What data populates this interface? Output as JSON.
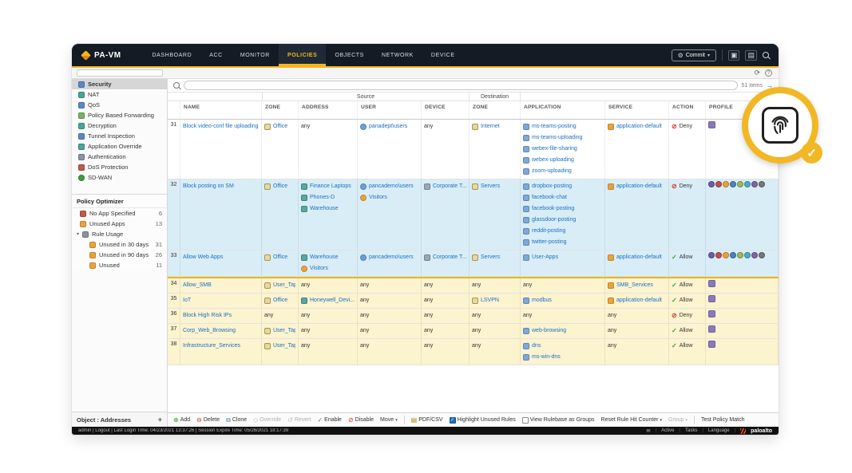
{
  "header": {
    "brand": "PA-VM",
    "nav": [
      "DASHBOARD",
      "ACC",
      "MONITOR",
      "POLICIES",
      "OBJECTS",
      "NETWORK",
      "DEVICE"
    ],
    "active_nav": "POLICIES",
    "commit_label": "Commit"
  },
  "sidebar": {
    "items": [
      {
        "label": "Security",
        "icon": "shield-icon",
        "selected": true
      },
      {
        "label": "NAT",
        "icon": "nat-icon"
      },
      {
        "label": "QoS",
        "icon": "qos-icon"
      },
      {
        "label": "Policy Based Forwarding",
        "icon": "forwarding-icon"
      },
      {
        "label": "Decryption",
        "icon": "decryption-icon"
      },
      {
        "label": "Tunnel Inspection",
        "icon": "tunnel-inspection-icon"
      },
      {
        "label": "Application Override",
        "icon": "app-override-icon"
      },
      {
        "label": "Authentication",
        "icon": "authentication-icon"
      },
      {
        "label": "DoS Protection",
        "icon": "dos-protection-icon"
      },
      {
        "label": "SD-WAN",
        "icon": "sdwan-icon"
      }
    ],
    "optimizer": {
      "title": "Policy Optimizer",
      "items": [
        {
          "label": "No App Specified",
          "count": "6",
          "icon": "no-app-icon"
        },
        {
          "label": "Unused Apps",
          "count": "13",
          "icon": "unused-apps-icon"
        },
        {
          "label": "Rule Usage",
          "count": "",
          "icon": "rule-usage-icon",
          "caret": true
        },
        {
          "label": "Unused in 30 days",
          "count": "31",
          "icon": "unused-rule-icon",
          "indent": true
        },
        {
          "label": "Unused in 90 days",
          "count": "26",
          "icon": "unused-rule-icon",
          "indent": true
        },
        {
          "label": "Unused",
          "count": "11",
          "icon": "unused-rule-icon",
          "indent": true
        }
      ]
    },
    "footer_label": "Object : Addresses"
  },
  "filterbar": {
    "items_count": "51 items"
  },
  "table": {
    "groups": [
      "Source",
      "Destination"
    ],
    "columns": [
      "NAME",
      "ZONE",
      "ADDRESS",
      "USER",
      "DEVICE",
      "ZONE",
      "APPLICATION",
      "SERVICE",
      "ACTION",
      "PROFILE"
    ],
    "rows": [
      {
        "num": "31",
        "name": "Block video-conf file uploading",
        "highlight": "none",
        "zone": [
          {
            "t": "Office",
            "i": "zone-icon"
          }
        ],
        "address": [
          {
            "t": "any"
          }
        ],
        "user": [
          {
            "t": "panadept\\users",
            "i": "user-icon"
          }
        ],
        "device": [
          {
            "t": "any"
          }
        ],
        "dest_zone": [
          {
            "t": "Internet",
            "i": "zone-icon"
          }
        ],
        "applications": [
          {
            "t": "ms-teams-posting",
            "i": "application-icon"
          },
          {
            "t": "ms-teams-uploading",
            "i": "application-icon"
          },
          {
            "t": "webex-file-sharing",
            "i": "application-icon"
          },
          {
            "t": "webex-uploading",
            "i": "application-icon"
          },
          {
            "t": "zoom-uploading",
            "i": "application-icon"
          }
        ],
        "service": [
          {
            "t": "application-default",
            "i": "service-icon"
          }
        ],
        "action": "Deny",
        "profile_icons": 1
      },
      {
        "num": "32",
        "name": "Block posting on SM",
        "highlight": "blue",
        "zone": [
          {
            "t": "Office",
            "i": "zone-icon"
          }
        ],
        "address": [
          {
            "t": "Finance Laptops",
            "i": "address-icon"
          },
          {
            "t": "Phones-D",
            "i": "address-icon"
          },
          {
            "t": "Warehouse",
            "i": "address-icon"
          }
        ],
        "user": [
          {
            "t": "pancademo\\users",
            "i": "user-icon"
          },
          {
            "t": "Visitors",
            "i": "visitors-icon"
          }
        ],
        "device": [
          {
            "t": "Corporate T...",
            "i": "device-icon"
          }
        ],
        "dest_zone": [
          {
            "t": "Servers",
            "i": "zone-icon"
          }
        ],
        "applications": [
          {
            "t": "dropbox-posting",
            "i": "application-icon"
          },
          {
            "t": "facebook-chat",
            "i": "application-icon"
          },
          {
            "t": "facebook-posting",
            "i": "application-icon"
          },
          {
            "t": "glassdoor-posting",
            "i": "application-icon"
          },
          {
            "t": "reddit-posting",
            "i": "application-icon"
          },
          {
            "t": "twitter-posting",
            "i": "application-icon"
          }
        ],
        "service": [
          {
            "t": "application-default",
            "i": "service-icon"
          }
        ],
        "action": "Deny",
        "profile_icons": 8
      },
      {
        "num": "33",
        "name": "Allow Web Apps",
        "highlight": "blue",
        "zone": [
          {
            "t": "Office",
            "i": "zone-icon"
          }
        ],
        "address": [
          {
            "t": "Warehouse",
            "i": "address-icon"
          },
          {
            "t": "Visitors",
            "i": "visitors-icon"
          }
        ],
        "user": [
          {
            "t": "pancademo\\users",
            "i": "user-icon"
          }
        ],
        "device": [
          {
            "t": "Corporate T...",
            "i": "device-icon"
          }
        ],
        "dest_zone": [
          {
            "t": "Servers",
            "i": "zone-icon"
          }
        ],
        "applications": [
          {
            "t": "User-Apps",
            "i": "application-icon"
          }
        ],
        "service": [
          {
            "t": "application-default",
            "i": "service-icon"
          }
        ],
        "action": "Allow",
        "profile_icons": 8
      },
      {
        "num": "34",
        "name": "Allow_SMB",
        "highlight": "yellow",
        "sep_top": true,
        "zone": [
          {
            "t": "User_Tap",
            "i": "zone-icon"
          }
        ],
        "address": [
          {
            "t": "any"
          }
        ],
        "user": [
          {
            "t": "any"
          }
        ],
        "device": [
          {
            "t": "any"
          }
        ],
        "dest_zone": [
          {
            "t": "any"
          }
        ],
        "applications": [
          {
            "t": "any"
          }
        ],
        "service": [
          {
            "t": "SMB_Services",
            "i": "service-icon"
          }
        ],
        "action": "Allow",
        "profile_icons": 1
      },
      {
        "num": "35",
        "name": "IoT",
        "highlight": "yellow",
        "zone": [
          {
            "t": "Office",
            "i": "zone-icon"
          }
        ],
        "address": [
          {
            "t": "Honeywell_Devi...",
            "i": "address-icon"
          }
        ],
        "user": [
          {
            "t": "any"
          }
        ],
        "device": [
          {
            "t": "any"
          }
        ],
        "dest_zone": [
          {
            "t": "LSVPN",
            "i": "zone-icon"
          }
        ],
        "applications": [
          {
            "t": "modbus",
            "i": "application-icon"
          }
        ],
        "service": [
          {
            "t": "application-default",
            "i": "service-icon"
          }
        ],
        "action": "Allow",
        "profile_icons": 1
      },
      {
        "num": "36",
        "name": "Block High Risk IPs",
        "highlight": "yellow",
        "zone": [
          {
            "t": "any"
          }
        ],
        "address": [
          {
            "t": "any"
          }
        ],
        "user": [
          {
            "t": "any"
          }
        ],
        "device": [
          {
            "t": "any"
          }
        ],
        "dest_zone": [
          {
            "t": "any"
          }
        ],
        "applications": [
          {
            "t": "any"
          }
        ],
        "service": [
          {
            "t": "any"
          }
        ],
        "action": "Deny",
        "profile_icons": 1
      },
      {
        "num": "37",
        "name": "Corp_Web_Browsing",
        "highlight": "yellow",
        "zone": [
          {
            "t": "User_Tap",
            "i": "zone-icon"
          }
        ],
        "address": [
          {
            "t": "any"
          }
        ],
        "user": [
          {
            "t": "any"
          }
        ],
        "device": [
          {
            "t": "any"
          }
        ],
        "dest_zone": [
          {
            "t": "any"
          }
        ],
        "applications": [
          {
            "t": "web-browsing",
            "i": "application-icon"
          }
        ],
        "service": [
          {
            "t": "any"
          }
        ],
        "action": "Allow",
        "profile_icons": 1
      },
      {
        "num": "38",
        "name": "Infrastructure_Services",
        "highlight": "yellow",
        "zone": [
          {
            "t": "User_Tap",
            "i": "zone-icon"
          }
        ],
        "address": [
          {
            "t": "any"
          }
        ],
        "user": [
          {
            "t": "any"
          }
        ],
        "device": [
          {
            "t": "any"
          }
        ],
        "dest_zone": [
          {
            "t": "any"
          }
        ],
        "applications": [
          {
            "t": "dns",
            "i": "application-icon"
          },
          {
            "t": "ms-win-dns",
            "i": "application-icon"
          }
        ],
        "service": [
          {
            "t": "any"
          }
        ],
        "action": "Allow",
        "profile_icons": 1
      }
    ]
  },
  "actionbar": {
    "buttons": [
      {
        "label": "Add",
        "icon": "add-icon"
      },
      {
        "label": "Delete",
        "icon": "delete-icon"
      },
      {
        "label": "Clone",
        "icon": "clone-icon"
      },
      {
        "label": "Override",
        "icon": "override-icon",
        "disabled": true
      },
      {
        "label": "Revert",
        "icon": "revert-icon",
        "disabled": true
      },
      {
        "label": "Enable",
        "icon": "enable-icon"
      },
      {
        "label": "Disable",
        "icon": "disable-icon"
      },
      {
        "label": "Move",
        "icon": "caret-down-icon",
        "dropdown": true
      },
      {
        "label": "PDF/CSV",
        "icon": "pdf-icon"
      }
    ],
    "checkboxes": [
      {
        "label": "Highlight Unused Rules",
        "checked": true
      },
      {
        "label": "View Rulebase as Groups",
        "checked": false
      }
    ],
    "extra_buttons": [
      {
        "label": "Reset Rule Hit Counter",
        "dropdown": true
      },
      {
        "label": "Group",
        "dropdown": true,
        "disabled": true
      },
      {
        "label": "Test Policy Match"
      }
    ]
  },
  "statusbar": {
    "left_text": "admin | Logout | Last Login Time: 04/23/2021 13:37:26 | Session Expire Time: 05/26/2021 18:17:39",
    "items": [
      "Active",
      "Tasks",
      "Language"
    ],
    "brand": "paloalto"
  },
  "colors": {
    "accent_gold": "#f6b51e",
    "link_blue": "#1a6fc4",
    "deny_red": "#cf3a2f",
    "allow_green": "#3f9c35",
    "row_highlight_blue": "#d9edf7",
    "row_highlight_yellow": "#fcf3cf"
  }
}
